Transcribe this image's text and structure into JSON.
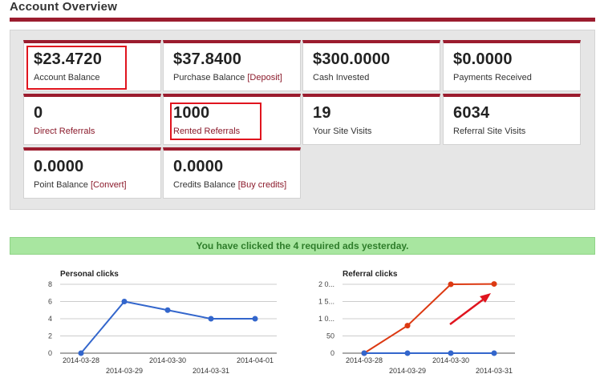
{
  "header": {
    "title": "Account Overview"
  },
  "stats": [
    {
      "value": "$23.4720",
      "label": "Account Balance",
      "link": ""
    },
    {
      "value": "$37.8400",
      "label": "Purchase Balance",
      "link": "[Deposit]"
    },
    {
      "value": "$300.0000",
      "label": "Cash Invested",
      "link": ""
    },
    {
      "value": "$0.0000",
      "label": "Payments Received",
      "link": ""
    },
    {
      "value": "0",
      "label": "Direct Referrals",
      "link": ""
    },
    {
      "value": "1000",
      "label": "Rented Referrals",
      "link": ""
    },
    {
      "value": "19",
      "label": "Your Site Visits",
      "link": ""
    },
    {
      "value": "6034",
      "label": "Referral Site Visits",
      "link": ""
    },
    {
      "value": "0.0000",
      "label": "Point Balance",
      "link": "[Convert]"
    },
    {
      "value": "0.0000",
      "label": "Credits Balance",
      "link": "[Buy credits]"
    }
  ],
  "notice": {
    "text": "You have clicked the 4 required ads yesterday."
  },
  "colors": {
    "accent": "#9b1c2e",
    "highlight": "#e0141e",
    "notice_bg": "#a8e6a0",
    "notice_text": "#2e7d2a",
    "personal_line": "#3366cc",
    "referral_rented": "#dc3912",
    "referral_direct": "#3366cc"
  },
  "chart_data": [
    {
      "type": "line",
      "title": "Personal clicks",
      "x": [
        "2014-03-28",
        "2014-03-29",
        "2014-03-30",
        "2014-03-31",
        "2014-04-01"
      ],
      "ylim": [
        0,
        8
      ],
      "yticks": [
        "0",
        "2",
        "4",
        "6",
        "8"
      ],
      "series": [
        {
          "values": [
            0,
            6,
            5,
            4,
            4
          ]
        }
      ],
      "grid": true,
      "legend": "none"
    },
    {
      "type": "line",
      "title": "Referral clicks",
      "x": [
        "2014-03-28",
        "2014-03-29",
        "2014-03-30",
        "2014-03-31"
      ],
      "ylim": [
        0,
        2000
      ],
      "yticks": [
        "0",
        "50",
        "1 0...",
        "1 5...",
        "2 0..."
      ],
      "series": [
        {
          "values": [
            0,
            800,
            2000,
            2010
          ]
        },
        {
          "values": [
            0,
            0,
            0,
            0
          ]
        }
      ],
      "grid": true,
      "legend": "none",
      "annotation": "red-arrow"
    }
  ]
}
